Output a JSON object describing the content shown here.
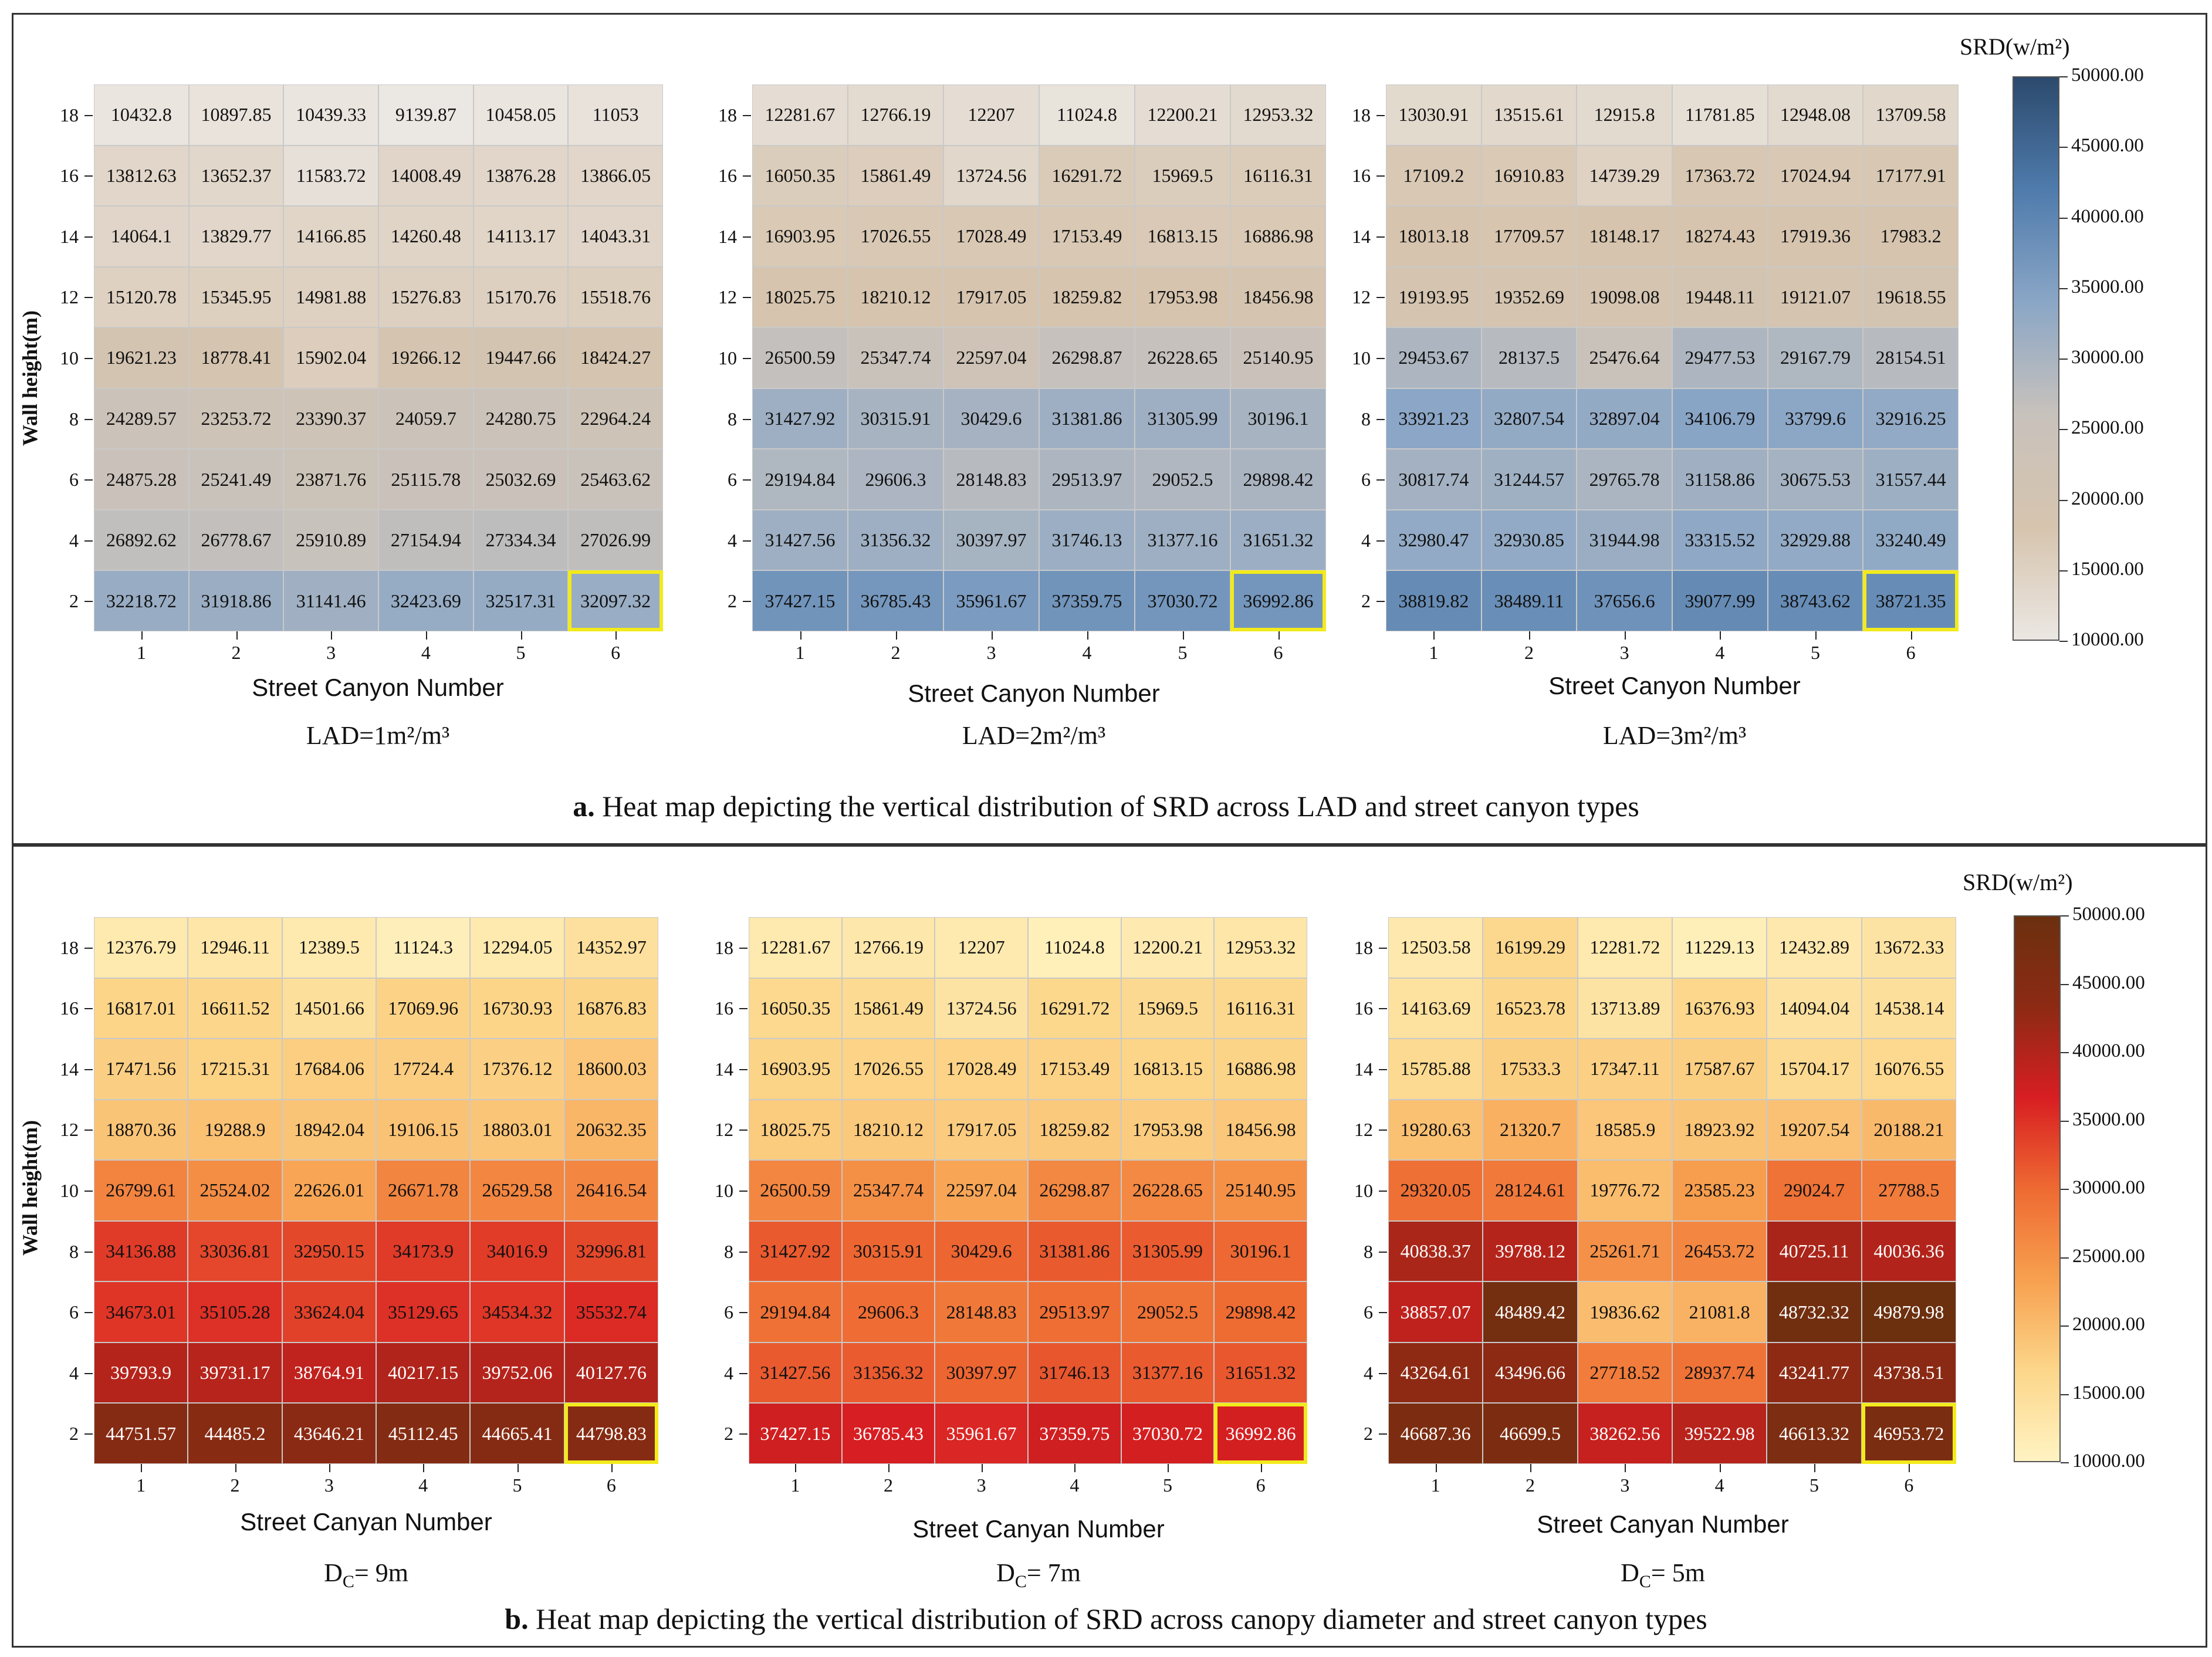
{
  "panel_a": {
    "caption_prefix": "a.",
    "caption": "Heat map depicting the vertical distribution of SRD across LAD and street canyon types",
    "colorbar": {
      "title": "SRD(w/m²)",
      "ticks": [
        "50000.00",
        "45000.00",
        "40000.00",
        "35000.00",
        "30000.00",
        "25000.00",
        "20000.00",
        "15000.00",
        "10000.00"
      ],
      "colors": [
        "#ebe7e2",
        "#d6c4ae",
        "#c8c2bc",
        "#8aa6c6",
        "#4f7bac",
        "#2c4a6d"
      ]
    },
    "subplots": [
      {
        "caption": "LAD=1m²/m³",
        "xlabel": "Street Canyon Number",
        "ylabel": "Wall height(m)"
      },
      {
        "caption": "LAD=2m²/m³",
        "xlabel": "Street Canyon Number"
      },
      {
        "caption": "LAD=3m²/m³",
        "xlabel": "Street Canyon Number"
      }
    ]
  },
  "panel_b": {
    "caption_prefix": "b.",
    "caption": "Heat map depicting the vertical distribution of SRD across canopy diameter and street canyon types",
    "colorbar": {
      "title": "SRD(w/m²)",
      "ticks": [
        "50000.00",
        "45000.00",
        "40000.00",
        "35000.00",
        "30000.00",
        "25000.00",
        "20000.00",
        "15000.00",
        "10000.00"
      ],
      "colors": [
        "#fff3c2",
        "#fcd68a",
        "#f7a04f",
        "#ee6a32",
        "#d81e22",
        "#8d2a14",
        "#6b300f"
      ]
    },
    "subplots": [
      {
        "caption_main": "D",
        "caption_sub": "C",
        "caption_rest": "= 9m",
        "xlabel": "Street Canyan Number",
        "ylabel": "Wall height(m)"
      },
      {
        "caption_main": "D",
        "caption_sub": "C",
        "caption_rest": "= 7m",
        "xlabel": "Street Canyan Number"
      },
      {
        "caption_main": "D",
        "caption_sub": "C",
        "caption_rest": "= 5m",
        "xlabel": "Street Canyan Number"
      }
    ]
  },
  "chart_data": [
    {
      "type": "heatmap",
      "title": "LAD=1m²/m³",
      "xlabel": "Street Canyon Number",
      "ylabel": "Wall height(m)",
      "x": [
        1,
        2,
        3,
        4,
        5,
        6
      ],
      "y": [
        18,
        16,
        14,
        12,
        10,
        8,
        6,
        4,
        2
      ],
      "color_range": [
        10000,
        50000
      ],
      "highlight": {
        "x": 6,
        "y": 2
      },
      "values": [
        [
          "10432.8",
          "10897.85",
          "10439.33",
          "9139.87",
          "10458.05",
          "11053"
        ],
        [
          "13812.63",
          "13652.37",
          "11583.72",
          "14008.49",
          "13876.28",
          "13866.05"
        ],
        [
          "14064.1",
          "13829.77",
          "14166.85",
          "14260.48",
          "14113.17",
          "14043.31"
        ],
        [
          "15120.78",
          "15345.95",
          "14981.88",
          "15276.83",
          "15170.76",
          "15518.76"
        ],
        [
          "19621.23",
          "18778.41",
          "15902.04",
          "19266.12",
          "19447.66",
          "18424.27"
        ],
        [
          "24289.57",
          "23253.72",
          "23390.37",
          "24059.7",
          "24280.75",
          "22964.24"
        ],
        [
          "24875.28",
          "25241.49",
          "23871.76",
          "25115.78",
          "25032.69",
          "25463.62"
        ],
        [
          "26892.62",
          "26778.67",
          "25910.89",
          "27154.94",
          "27334.34",
          "27026.99"
        ],
        [
          "32218.72",
          "31918.86",
          "31141.46",
          "32423.69",
          "32517.31",
          "32097.32"
        ]
      ]
    },
    {
      "type": "heatmap",
      "title": "LAD=2m²/m³",
      "xlabel": "Street Canyon Number",
      "ylabel": "",
      "x": [
        1,
        2,
        3,
        4,
        5,
        6
      ],
      "y": [
        18,
        16,
        14,
        12,
        10,
        8,
        6,
        4,
        2
      ],
      "color_range": [
        10000,
        50000
      ],
      "highlight": {
        "x": 6,
        "y": 2
      },
      "values": [
        [
          "12281.67",
          "12766.19",
          "12207",
          "11024.8",
          "12200.21",
          "12953.32"
        ],
        [
          "16050.35",
          "15861.49",
          "13724.56",
          "16291.72",
          "15969.5",
          "16116.31"
        ],
        [
          "16903.95",
          "17026.55",
          "17028.49",
          "17153.49",
          "16813.15",
          "16886.98"
        ],
        [
          "18025.75",
          "18210.12",
          "17917.05",
          "18259.82",
          "17953.98",
          "18456.98"
        ],
        [
          "26500.59",
          "25347.74",
          "22597.04",
          "26298.87",
          "26228.65",
          "25140.95"
        ],
        [
          "31427.92",
          "30315.91",
          "30429.6",
          "31381.86",
          "31305.99",
          "30196.1"
        ],
        [
          "29194.84",
          "29606.3",
          "28148.83",
          "29513.97",
          "29052.5",
          "29898.42"
        ],
        [
          "31427.56",
          "31356.32",
          "30397.97",
          "31746.13",
          "31377.16",
          "31651.32"
        ],
        [
          "37427.15",
          "36785.43",
          "35961.67",
          "37359.75",
          "37030.72",
          "36992.86"
        ]
      ]
    },
    {
      "type": "heatmap",
      "title": "LAD=3m²/m³",
      "xlabel": "Street Canyon Number",
      "ylabel": "",
      "x": [
        1,
        2,
        3,
        4,
        5,
        6
      ],
      "y": [
        18,
        16,
        14,
        12,
        10,
        8,
        6,
        4,
        2
      ],
      "color_range": [
        10000,
        50000
      ],
      "highlight": {
        "x": 6,
        "y": 2
      },
      "values": [
        [
          "13030.91",
          "13515.61",
          "12915.8",
          "11781.85",
          "12948.08",
          "13709.58"
        ],
        [
          "17109.2",
          "16910.83",
          "14739.29",
          "17363.72",
          "17024.94",
          "17177.91"
        ],
        [
          "18013.18",
          "17709.57",
          "18148.17",
          "18274.43",
          "17919.36",
          "17983.2"
        ],
        [
          "19193.95",
          "19352.69",
          "19098.08",
          "19448.11",
          "19121.07",
          "19618.55"
        ],
        [
          "29453.67",
          "28137.5",
          "25476.64",
          "29477.53",
          "29167.79",
          "28154.51"
        ],
        [
          "33921.23",
          "32807.54",
          "32897.04",
          "34106.79",
          "33799.6",
          "32916.25"
        ],
        [
          "30817.74",
          "31244.57",
          "29765.78",
          "31158.86",
          "30675.53",
          "31557.44"
        ],
        [
          "32980.47",
          "32930.85",
          "31944.98",
          "33315.52",
          "32929.88",
          "33240.49"
        ],
        [
          "38819.82",
          "38489.11",
          "37656.6",
          "39077.99",
          "38743.62",
          "38721.35"
        ]
      ]
    },
    {
      "type": "heatmap",
      "title": "DC= 9m",
      "xlabel": "Street Canyan Number",
      "ylabel": "Wall height(m)",
      "x": [
        1,
        2,
        3,
        4,
        5,
        6
      ],
      "y": [
        18,
        16,
        14,
        12,
        10,
        8,
        6,
        4,
        2
      ],
      "color_range": [
        10000,
        50000
      ],
      "highlight": {
        "x": 6,
        "y": 2
      },
      "values": [
        [
          "12376.79",
          "12946.11",
          "12389.5",
          "11124.3",
          "12294.05",
          "14352.97"
        ],
        [
          "16817.01",
          "16611.52",
          "14501.66",
          "17069.96",
          "16730.93",
          "16876.83"
        ],
        [
          "17471.56",
          "17215.31",
          "17684.06",
          "17724.4",
          "17376.12",
          "18600.03"
        ],
        [
          "18870.36",
          "19288.9",
          "18942.04",
          "19106.15",
          "18803.01",
          "20632.35"
        ],
        [
          "26799.61",
          "25524.02",
          "22626.01",
          "26671.78",
          "26529.58",
          "26416.54"
        ],
        [
          "34136.88",
          "33036.81",
          "32950.15",
          "34173.9",
          "34016.9",
          "32996.81"
        ],
        [
          "34673.01",
          "35105.28",
          "33624.04",
          "35129.65",
          "34534.32",
          "35532.74"
        ],
        [
          "39793.9",
          "39731.17",
          "38764.91",
          "40217.15",
          "39752.06",
          "40127.76"
        ],
        [
          "44751.57",
          "44485.2",
          "43646.21",
          "45112.45",
          "44665.41",
          "44798.83"
        ]
      ]
    },
    {
      "type": "heatmap",
      "title": "DC= 7m",
      "xlabel": "Street Canyan Number",
      "ylabel": "",
      "x": [
        1,
        2,
        3,
        4,
        5,
        6
      ],
      "y": [
        18,
        16,
        14,
        12,
        10,
        8,
        6,
        4,
        2
      ],
      "color_range": [
        10000,
        50000
      ],
      "highlight": {
        "x": 6,
        "y": 2
      },
      "values": [
        [
          "12281.67",
          "12766.19",
          "12207",
          "11024.8",
          "12200.21",
          "12953.32"
        ],
        [
          "16050.35",
          "15861.49",
          "13724.56",
          "16291.72",
          "15969.5",
          "16116.31"
        ],
        [
          "16903.95",
          "17026.55",
          "17028.49",
          "17153.49",
          "16813.15",
          "16886.98"
        ],
        [
          "18025.75",
          "18210.12",
          "17917.05",
          "18259.82",
          "17953.98",
          "18456.98"
        ],
        [
          "26500.59",
          "25347.74",
          "22597.04",
          "26298.87",
          "26228.65",
          "25140.95"
        ],
        [
          "31427.92",
          "30315.91",
          "30429.6",
          "31381.86",
          "31305.99",
          "30196.1"
        ],
        [
          "29194.84",
          "29606.3",
          "28148.83",
          "29513.97",
          "29052.5",
          "29898.42"
        ],
        [
          "31427.56",
          "31356.32",
          "30397.97",
          "31746.13",
          "31377.16",
          "31651.32"
        ],
        [
          "37427.15",
          "36785.43",
          "35961.67",
          "37359.75",
          "37030.72",
          "36992.86"
        ]
      ]
    },
    {
      "type": "heatmap",
      "title": "DC= 5m",
      "xlabel": "Street Canyan Number",
      "ylabel": "",
      "x": [
        1,
        2,
        3,
        4,
        5,
        6
      ],
      "y": [
        18,
        16,
        14,
        12,
        10,
        8,
        6,
        4,
        2
      ],
      "color_range": [
        10000,
        50000
      ],
      "highlight": {
        "x": 6,
        "y": 2
      },
      "values": [
        [
          "12503.58",
          "16199.29",
          "12281.72",
          "11229.13",
          "12432.89",
          "13672.33"
        ],
        [
          "14163.69",
          "16523.78",
          "13713.89",
          "16376.93",
          "14094.04",
          "14538.14"
        ],
        [
          "15785.88",
          "17533.3",
          "17347.11",
          "17587.67",
          "15704.17",
          "16076.55"
        ],
        [
          "19280.63",
          "21320.7",
          "18585.9",
          "18923.92",
          "19207.54",
          "20188.21"
        ],
        [
          "29320.05",
          "28124.61",
          "19776.72",
          "23585.23",
          "29024.7",
          "27788.5"
        ],
        [
          "40838.37",
          "39788.12",
          "25261.71",
          "26453.72",
          "40725.11",
          "40036.36"
        ],
        [
          "38857.07",
          "48489.42",
          "19836.62",
          "21081.8",
          "48732.32",
          "49879.98"
        ],
        [
          "43264.61",
          "43496.66",
          "27718.52",
          "28937.74",
          "43241.77",
          "43738.51"
        ],
        [
          "46687.36",
          "46699.5",
          "38262.56",
          "39522.98",
          "46613.32",
          "46953.72"
        ]
      ]
    }
  ]
}
